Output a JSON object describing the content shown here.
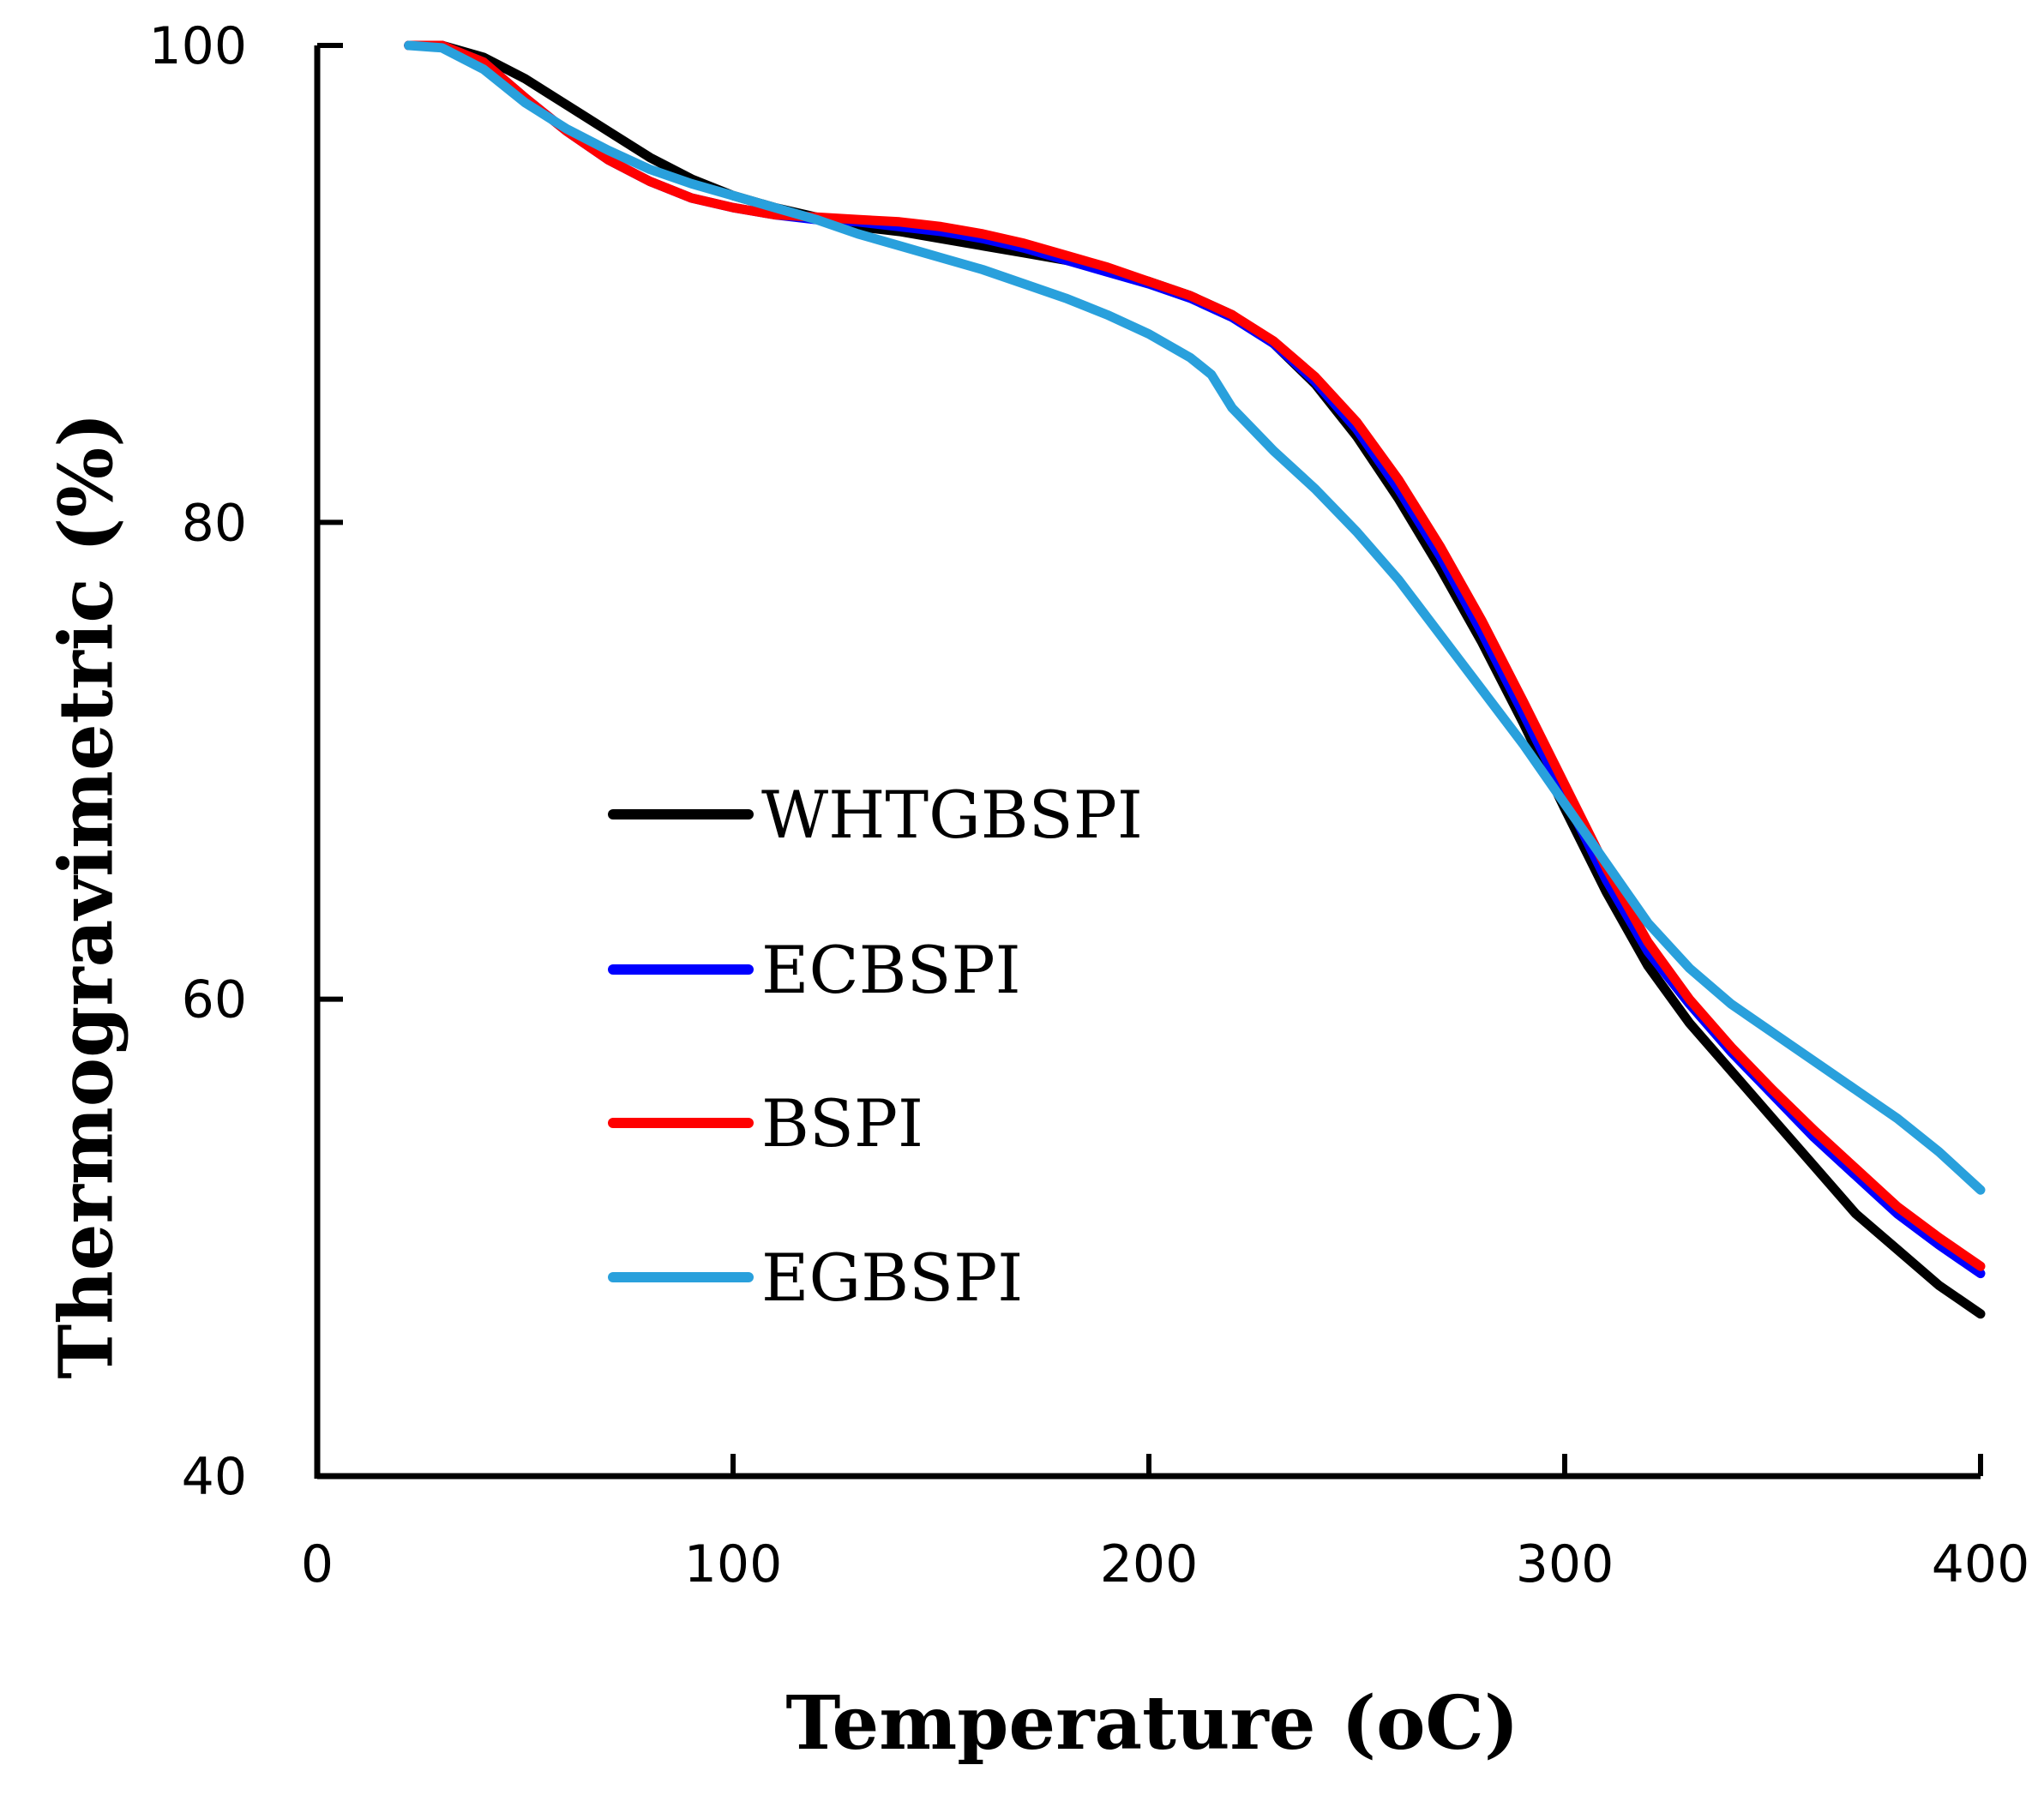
{
  "chart_data": {
    "type": "line",
    "title": "",
    "xlabel": "Temperature",
    "xlabel_unit": "(oC)",
    "ylabel": "Thermogravimetric (%)",
    "xlim": [
      0,
      400
    ],
    "ylim": [
      40,
      100
    ],
    "xticks": [
      "0",
      "100",
      "200",
      "300",
      "400"
    ],
    "yticks": [
      "40",
      "60",
      "80",
      "100"
    ],
    "grid": false,
    "legend": "middle-left",
    "series": [
      {
        "name": "WHTGBSPI",
        "color": "#000000",
        "points": [
          [
            22,
            100
          ],
          [
            30,
            100
          ],
          [
            40,
            99.5
          ],
          [
            50,
            98.6
          ],
          [
            60,
            97.5
          ],
          [
            70,
            96.4
          ],
          [
            80,
            95.3
          ],
          [
            90,
            94.4
          ],
          [
            100,
            93.7
          ],
          [
            110,
            93.2
          ],
          [
            120,
            92.8
          ],
          [
            130,
            92.4
          ],
          [
            140,
            92.2
          ],
          [
            150,
            91.9
          ],
          [
            160,
            91.6
          ],
          [
            170,
            91.3
          ],
          [
            180,
            91.0
          ],
          [
            190,
            90.6
          ],
          [
            200,
            90.1
          ],
          [
            210,
            89.5
          ],
          [
            220,
            88.7
          ],
          [
            230,
            87.5
          ],
          [
            240,
            85.8
          ],
          [
            250,
            83.6
          ],
          [
            260,
            81.0
          ],
          [
            270,
            78.1
          ],
          [
            280,
            75.0
          ],
          [
            290,
            71.6
          ],
          [
            300,
            68.0
          ],
          [
            310,
            64.5
          ],
          [
            320,
            61.4
          ],
          [
            330,
            59.0
          ],
          [
            340,
            57.0
          ],
          [
            350,
            55.0
          ],
          [
            360,
            53.0
          ],
          [
            370,
            51.0
          ],
          [
            380,
            49.5
          ],
          [
            390,
            48.0
          ],
          [
            400,
            46.8
          ]
        ]
      },
      {
        "name": "ECBSPI",
        "color": "#0000ff",
        "points": [
          [
            22,
            100
          ],
          [
            30,
            100
          ],
          [
            40,
            99.3
          ],
          [
            50,
            97.8
          ],
          [
            60,
            96.4
          ],
          [
            70,
            95.2
          ],
          [
            80,
            94.3
          ],
          [
            90,
            93.6
          ],
          [
            100,
            93.2
          ],
          [
            110,
            92.9
          ],
          [
            120,
            92.7
          ],
          [
            130,
            92.6
          ],
          [
            140,
            92.4
          ],
          [
            150,
            92.2
          ],
          [
            160,
            91.9
          ],
          [
            170,
            91.5
          ],
          [
            180,
            91.0
          ],
          [
            190,
            90.5
          ],
          [
            200,
            90.0
          ],
          [
            210,
            89.4
          ],
          [
            220,
            88.6
          ],
          [
            230,
            87.5
          ],
          [
            240,
            85.9
          ],
          [
            250,
            83.9
          ],
          [
            260,
            81.4
          ],
          [
            270,
            78.6
          ],
          [
            280,
            75.4
          ],
          [
            290,
            72.0
          ],
          [
            300,
            68.5
          ],
          [
            310,
            65.0
          ],
          [
            320,
            62.0
          ],
          [
            330,
            59.8
          ],
          [
            340,
            57.8
          ],
          [
            350,
            56.0
          ],
          [
            360,
            54.2
          ],
          [
            370,
            52.6
          ],
          [
            380,
            51.0
          ],
          [
            390,
            49.7
          ],
          [
            400,
            48.5
          ]
        ]
      },
      {
        "name": "BSPI",
        "color": "#ff0000",
        "points": [
          [
            22,
            100
          ],
          [
            30,
            100
          ],
          [
            40,
            99.3
          ],
          [
            50,
            97.8
          ],
          [
            60,
            96.4
          ],
          [
            70,
            95.2
          ],
          [
            80,
            94.3
          ],
          [
            90,
            93.6
          ],
          [
            100,
            93.2
          ],
          [
            110,
            92.9
          ],
          [
            120,
            92.8
          ],
          [
            130,
            92.7
          ],
          [
            140,
            92.6
          ],
          [
            150,
            92.4
          ],
          [
            160,
            92.1
          ],
          [
            170,
            91.7
          ],
          [
            180,
            91.2
          ],
          [
            190,
            90.7
          ],
          [
            200,
            90.1
          ],
          [
            210,
            89.5
          ],
          [
            220,
            88.7
          ],
          [
            230,
            87.6
          ],
          [
            240,
            86.1
          ],
          [
            250,
            84.2
          ],
          [
            260,
            81.8
          ],
          [
            270,
            79.0
          ],
          [
            280,
            75.9
          ],
          [
            290,
            72.5
          ],
          [
            300,
            69.0
          ],
          [
            310,
            65.5
          ],
          [
            320,
            62.4
          ],
          [
            330,
            60.0
          ],
          [
            340,
            58.0
          ],
          [
            350,
            56.2
          ],
          [
            360,
            54.5
          ],
          [
            370,
            52.9
          ],
          [
            380,
            51.3
          ],
          [
            390,
            50.0
          ],
          [
            400,
            48.8
          ]
        ]
      },
      {
        "name": "EGBSPI",
        "color": "#29a0dc",
        "points": [
          [
            22,
            100
          ],
          [
            30,
            99.9
          ],
          [
            40,
            99.0
          ],
          [
            50,
            97.6
          ],
          [
            60,
            96.5
          ],
          [
            70,
            95.6
          ],
          [
            80,
            94.8
          ],
          [
            90,
            94.2
          ],
          [
            100,
            93.7
          ],
          [
            110,
            93.2
          ],
          [
            120,
            92.7
          ],
          [
            130,
            92.1
          ],
          [
            140,
            91.6
          ],
          [
            150,
            91.1
          ],
          [
            160,
            90.6
          ],
          [
            170,
            90.0
          ],
          [
            180,
            89.4
          ],
          [
            190,
            88.7
          ],
          [
            200,
            87.9
          ],
          [
            210,
            86.9
          ],
          [
            215,
            86.2
          ],
          [
            220,
            84.8
          ],
          [
            230,
            83.0
          ],
          [
            240,
            81.4
          ],
          [
            250,
            79.6
          ],
          [
            260,
            77.6
          ],
          [
            270,
            75.3
          ],
          [
            280,
            73.0
          ],
          [
            290,
            70.7
          ],
          [
            300,
            68.2
          ],
          [
            310,
            65.7
          ],
          [
            320,
            63.2
          ],
          [
            330,
            61.3
          ],
          [
            340,
            59.8
          ],
          [
            350,
            58.6
          ],
          [
            360,
            57.4
          ],
          [
            370,
            56.2
          ],
          [
            380,
            55.0
          ],
          [
            390,
            53.6
          ],
          [
            400,
            52.0
          ]
        ]
      }
    ]
  }
}
